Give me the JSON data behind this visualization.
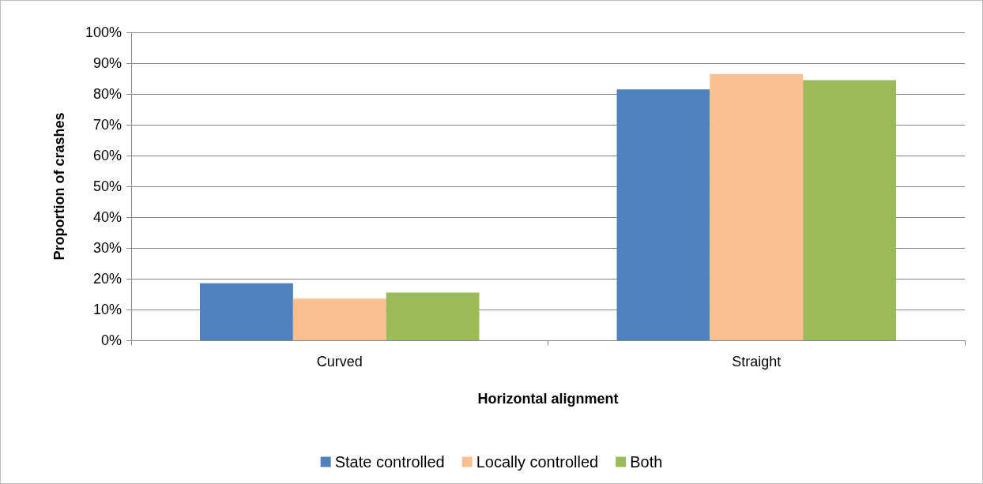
{
  "chart_data": {
    "type": "bar",
    "xlabel": "Horizontal alignment",
    "ylabel": "Proportion of crashes",
    "categories": [
      "Curved",
      "Straight"
    ],
    "series": [
      {
        "name": "State controlled",
        "color": "#4f81bd",
        "values": [
          18.5,
          81.5
        ]
      },
      {
        "name": "Locally controlled",
        "color": "#fac090",
        "values": [
          13.5,
          86.5
        ]
      },
      {
        "name": "Both",
        "color": "#9bbb59",
        "values": [
          15.5,
          84.5
        ]
      }
    ],
    "ylim": [
      0,
      100
    ],
    "yticks": [
      {
        "value": 0,
        "label": "0%"
      },
      {
        "value": 10,
        "label": "10%"
      },
      {
        "value": 20,
        "label": "20%"
      },
      {
        "value": 30,
        "label": "30%"
      },
      {
        "value": 40,
        "label": "40%"
      },
      {
        "value": 50,
        "label": "50%"
      },
      {
        "value": 60,
        "label": "60%"
      },
      {
        "value": 70,
        "label": "70%"
      },
      {
        "value": 80,
        "label": "80%"
      },
      {
        "value": 90,
        "label": "90%"
      },
      {
        "value": 100,
        "label": "100%"
      }
    ],
    "grid": "y",
    "legend": "bottom"
  }
}
